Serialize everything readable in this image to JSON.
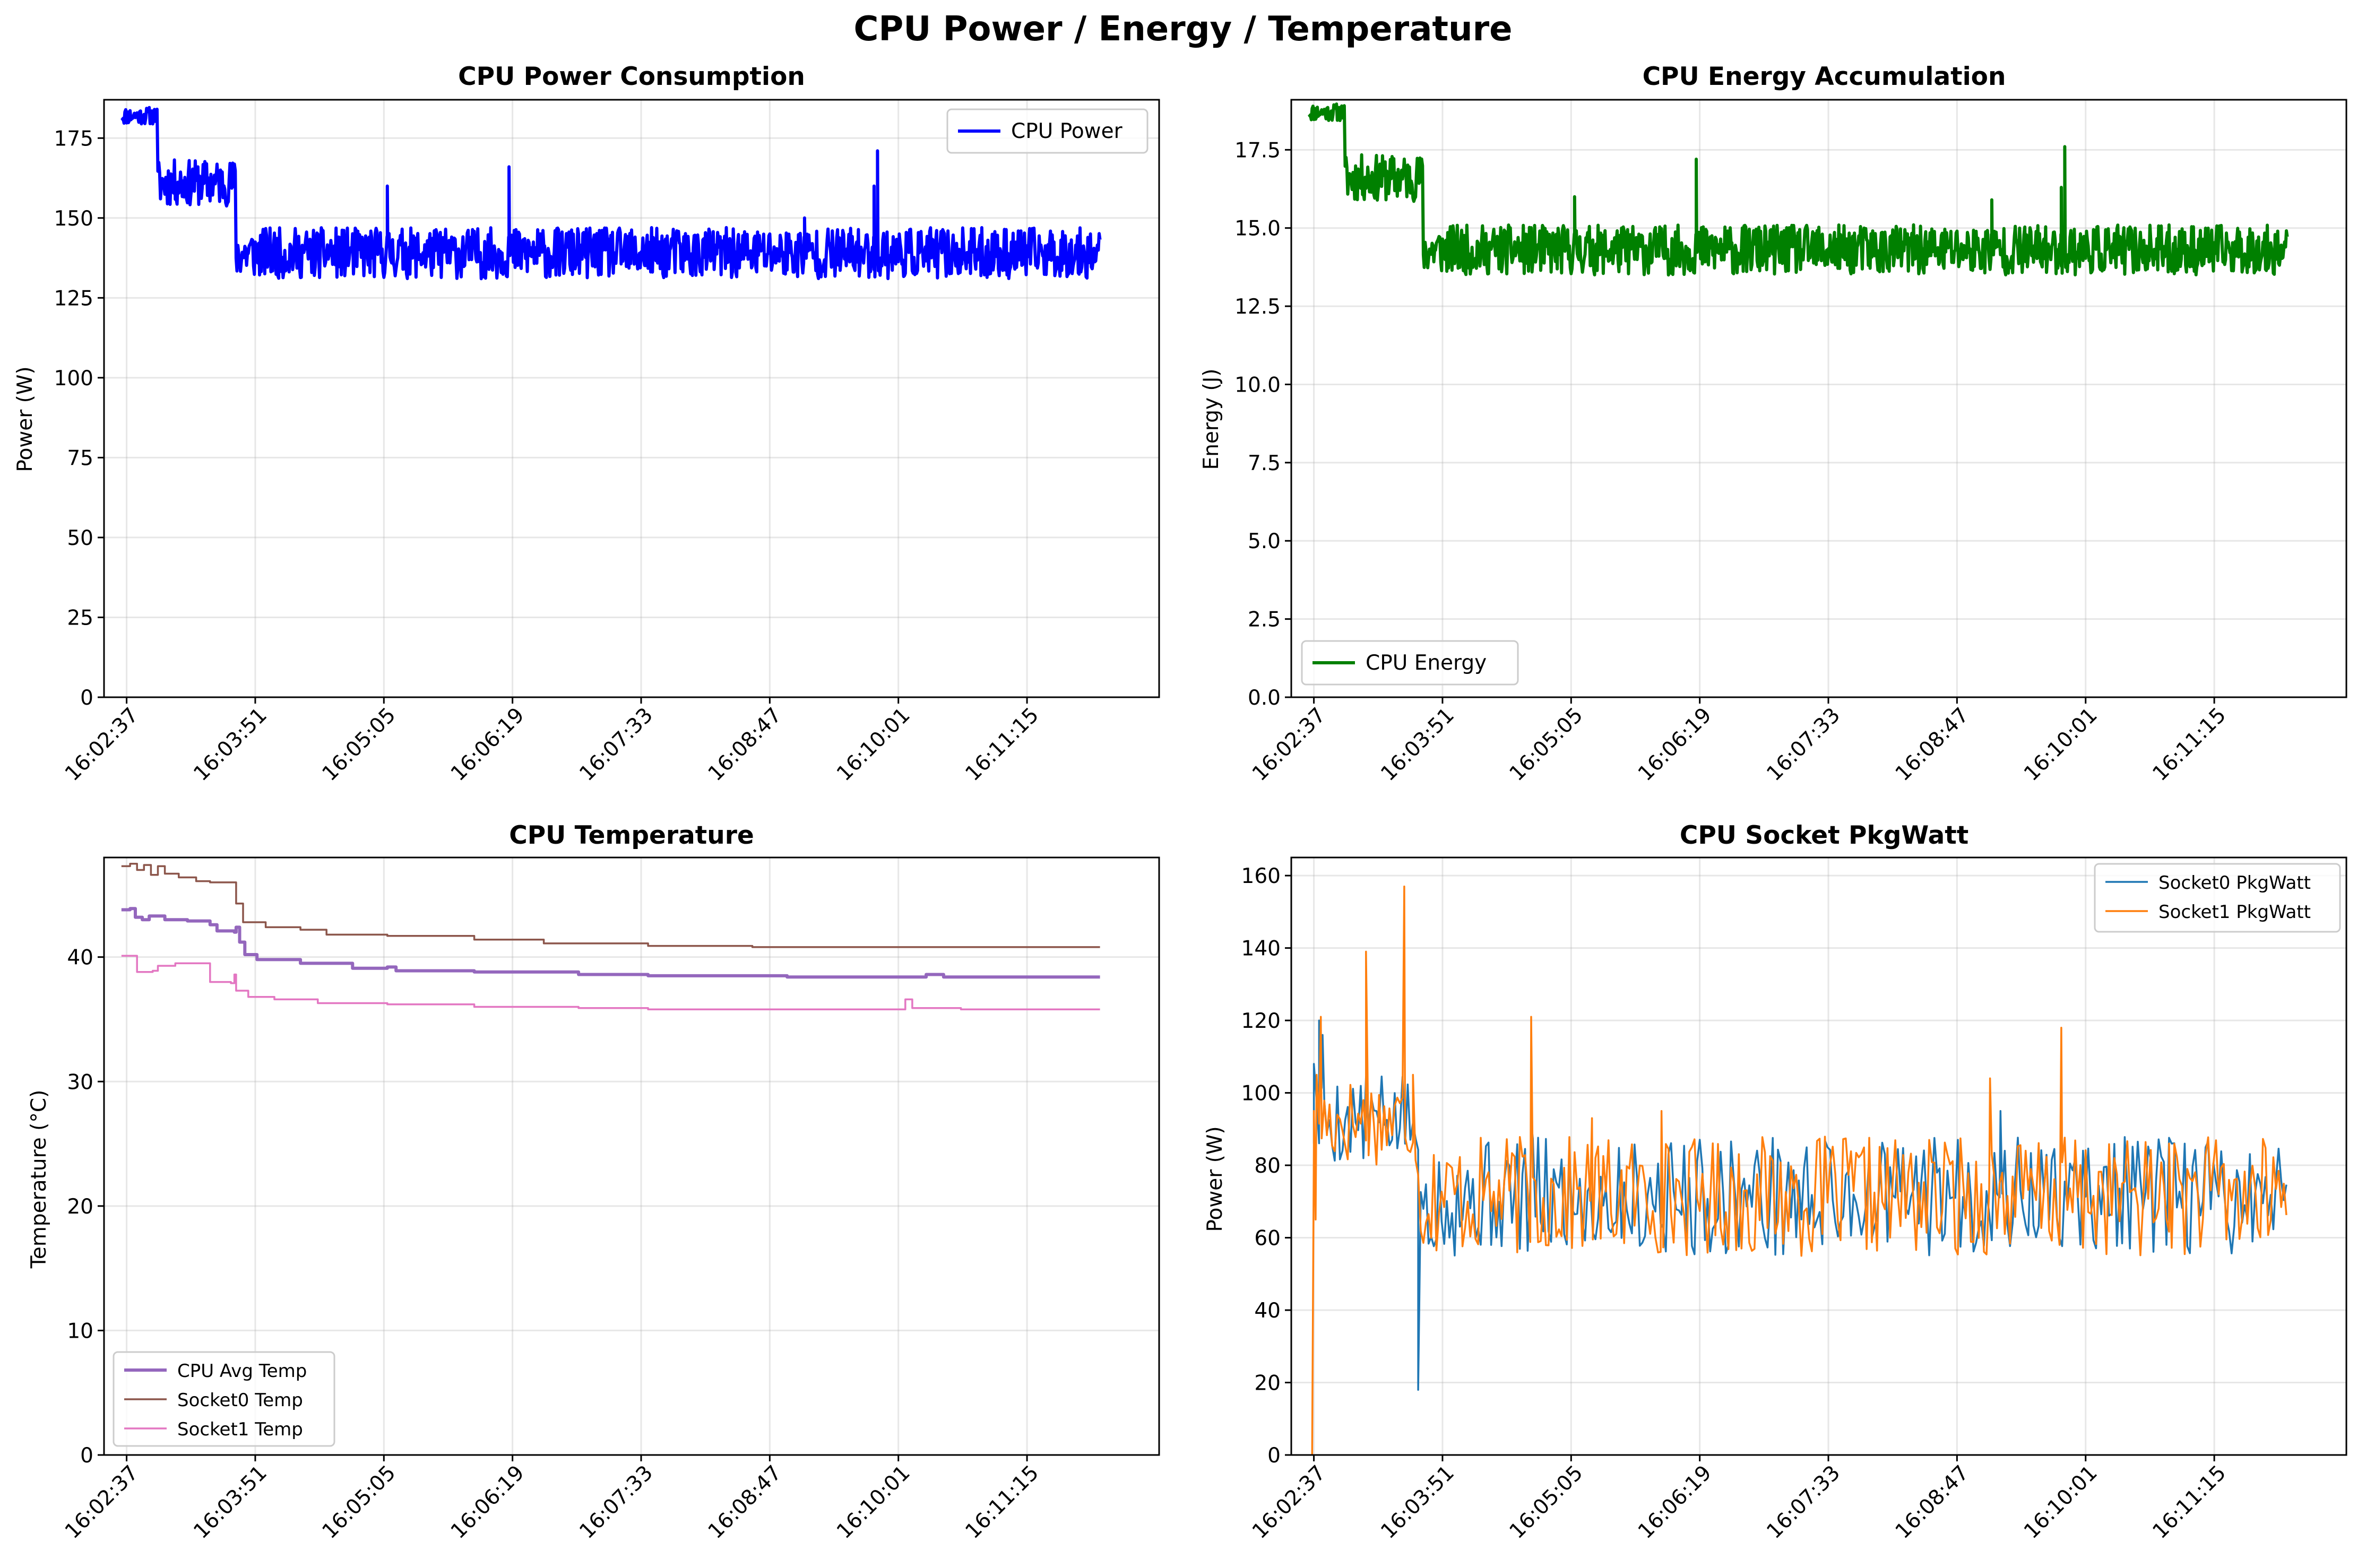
{
  "figure": {
    "suptitle": "CPU Power / Energy / Temperature"
  },
  "time_ticks": [
    "16:02:37",
    "16:03:51",
    "16:05:05",
    "16:06:19",
    "16:07:33",
    "16:08:47",
    "16:10:01",
    "16:11:15"
  ],
  "chart_data": [
    {
      "id": "power",
      "type": "line",
      "title": "CPU Power Consumption",
      "xlabel": "",
      "ylabel": "Power (W)",
      "ylim": [
        0,
        187
      ],
      "xlim_seconds_from_first_tick": [
        -13,
        594
      ],
      "yticks": [
        0,
        25,
        50,
        75,
        100,
        125,
        150,
        175
      ],
      "ytick_labels": [
        "0",
        "25",
        "50",
        "75",
        "100",
        "125",
        "150",
        "175"
      ],
      "grid": true,
      "legend_position": "upper right",
      "series": [
        {
          "name": "CPU Power",
          "color": "#0000ff",
          "gen": {
            "kind": "power",
            "start": 182,
            "drop1": [
              18,
              161
            ],
            "drop2": [
              63,
              138
            ],
            "seed": 11,
            "noise_lo": 131,
            "noise_hi": 147,
            "end": 560,
            "spikes": [
              [
                150,
                160
              ],
              [
                220,
                166
              ],
              [
                390,
                150
              ],
              [
                430,
                160
              ],
              [
                432,
                171
              ]
            ]
          }
        }
      ]
    },
    {
      "id": "energy",
      "type": "line",
      "title": "CPU Energy Accumulation",
      "xlabel": "",
      "ylabel": "Energy (J)",
      "ylim": [
        0,
        19.1
      ],
      "xlim_seconds_from_first_tick": [
        -13,
        594
      ],
      "yticks": [
        0,
        2.5,
        5,
        7.5,
        10,
        12.5,
        15,
        17.5
      ],
      "ytick_labels": [
        "0.0",
        "2.5",
        "5.0",
        "7.5",
        "10.0",
        "12.5",
        "15.0",
        "17.5"
      ],
      "grid": true,
      "legend_position": "lower left",
      "series": [
        {
          "name": "CPU Energy",
          "color": "#008000",
          "gen": {
            "kind": "power",
            "start": 18.7,
            "drop1": [
              18,
              16.6
            ],
            "drop2": [
              63,
              14.2
            ],
            "seed": 11,
            "noise_lo": 13.5,
            "noise_hi": 15.1,
            "end": 560,
            "spikes": [
              [
                150,
                16.0
              ],
              [
                220,
                17.2
              ],
              [
                390,
                15.9
              ],
              [
                430,
                16.3
              ],
              [
                432,
                17.6
              ]
            ]
          }
        }
      ]
    },
    {
      "id": "temp",
      "type": "line",
      "title": "CPU Temperature",
      "xlabel": "",
      "ylabel": "Temperature (°C)",
      "ylim": [
        0,
        48
      ],
      "xlim_seconds_from_first_tick": [
        -13,
        594
      ],
      "yticks": [
        0,
        10,
        20,
        30,
        40
      ],
      "ytick_labels": [
        "0",
        "10",
        "20",
        "30",
        "40"
      ],
      "grid": true,
      "legend_position": "lower left",
      "series": [
        {
          "name": "CPU Avg Temp",
          "color": "#9467bd",
          "width": 6,
          "points": [
            [
              -3,
              43.8
            ],
            [
              2,
              43.9
            ],
            [
              5,
              43.2
            ],
            [
              9,
              43.0
            ],
            [
              13,
              43.3
            ],
            [
              22,
              43.0
            ],
            [
              35,
              42.9
            ],
            [
              48,
              42.6
            ],
            [
              52,
              42.1
            ],
            [
              62,
              42.0
            ],
            [
              63,
              42.4
            ],
            [
              65,
              41.2
            ],
            [
              68,
              40.2
            ],
            [
              75,
              39.8
            ],
            [
              100,
              39.5
            ],
            [
              130,
              39.1
            ],
            [
              145,
              39.1
            ],
            [
              150,
              39.2
            ],
            [
              155,
              38.9
            ],
            [
              200,
              38.8
            ],
            [
              260,
              38.6
            ],
            [
              300,
              38.5
            ],
            [
              350,
              38.5
            ],
            [
              380,
              38.4
            ],
            [
              440,
              38.4
            ],
            [
              460,
              38.6
            ],
            [
              470,
              38.4
            ],
            [
              540,
              38.4
            ],
            [
              560,
              38.4
            ]
          ]
        },
        {
          "name": "Socket0 Temp",
          "color": "#8c564b",
          "width": 3.5,
          "points": [
            [
              -3,
              47.3
            ],
            [
              2,
              47.5
            ],
            [
              6,
              47.0
            ],
            [
              10,
              47.4
            ],
            [
              14,
              46.6
            ],
            [
              18,
              47.3
            ],
            [
              22,
              46.7
            ],
            [
              30,
              46.4
            ],
            [
              40,
              46.1
            ],
            [
              48,
              46.0
            ],
            [
              62,
              46.0
            ],
            [
              63,
              44.3
            ],
            [
              67,
              42.8
            ],
            [
              80,
              42.4
            ],
            [
              100,
              42.2
            ],
            [
              115,
              41.8
            ],
            [
              150,
              41.7
            ],
            [
              200,
              41.4
            ],
            [
              240,
              41.1
            ],
            [
              300,
              40.9
            ],
            [
              340,
              40.9
            ],
            [
              360,
              40.8
            ],
            [
              440,
              40.8
            ],
            [
              470,
              40.8
            ],
            [
              560,
              40.8
            ]
          ]
        },
        {
          "name": "Socket1 Temp",
          "color": "#e377c2",
          "width": 3.5,
          "points": [
            [
              -3,
              40.1
            ],
            [
              5,
              40.1
            ],
            [
              6,
              38.8
            ],
            [
              15,
              38.9
            ],
            [
              18,
              39.3
            ],
            [
              28,
              39.5
            ],
            [
              45,
              39.5
            ],
            [
              48,
              38.0
            ],
            [
              60,
              37.9
            ],
            [
              62,
              38.6
            ],
            [
              63,
              37.3
            ],
            [
              70,
              36.8
            ],
            [
              85,
              36.6
            ],
            [
              110,
              36.3
            ],
            [
              150,
              36.2
            ],
            [
              200,
              36.0
            ],
            [
              260,
              35.9
            ],
            [
              300,
              35.8
            ],
            [
              380,
              35.8
            ],
            [
              440,
              35.8
            ],
            [
              448,
              36.6
            ],
            [
              452,
              35.9
            ],
            [
              480,
              35.8
            ],
            [
              560,
              35.8
            ]
          ]
        }
      ]
    },
    {
      "id": "socket",
      "type": "line",
      "title": "CPU Socket PkgWatt",
      "xlabel": "",
      "ylabel": "Power (W)",
      "ylim": [
        0,
        165
      ],
      "xlim_seconds_from_first_tick": [
        -13,
        594
      ],
      "yticks": [
        0,
        20,
        40,
        60,
        80,
        100,
        120,
        140,
        160
      ],
      "ytick_labels": [
        "0",
        "20",
        "40",
        "60",
        "80",
        "100",
        "120",
        "140",
        "160"
      ],
      "grid": true,
      "legend_position": "upper right",
      "series": [
        {
          "name": "Socket0 PkgWatt",
          "color": "#1f77b4",
          "width": 3.5,
          "gen": {
            "kind": "socket",
            "seed": 5,
            "end": 560,
            "hi": [
              [
                0,
                108
              ],
              [
                3,
                120
              ],
              [
                5,
                116
              ],
              [
                60,
                18
              ]
            ],
            "spikes": [
              [
                125,
                92
              ],
              [
                395,
                95
              ]
            ]
          }
        },
        {
          "name": "Socket1 PkgWatt",
          "color": "#ff7f0e",
          "width": 3.5,
          "gen": {
            "kind": "socket",
            "seed": 17,
            "end": 560,
            "hi": [
              [
                -1,
                0
              ],
              [
                0,
                95
              ],
              [
                1,
                65
              ],
              [
                1.6,
                105
              ],
              [
                4,
                121
              ],
              [
                30,
                139
              ],
              [
                52,
                157
              ],
              [
                57,
                105
              ],
              [
                125,
                121
              ],
              [
                389,
                104
              ],
              [
                430,
                118
              ],
              [
                492,
                86
              ]
            ],
            "spikes": [
              [
                160,
                93
              ],
              [
                200,
                95
              ]
            ]
          }
        }
      ]
    }
  ]
}
